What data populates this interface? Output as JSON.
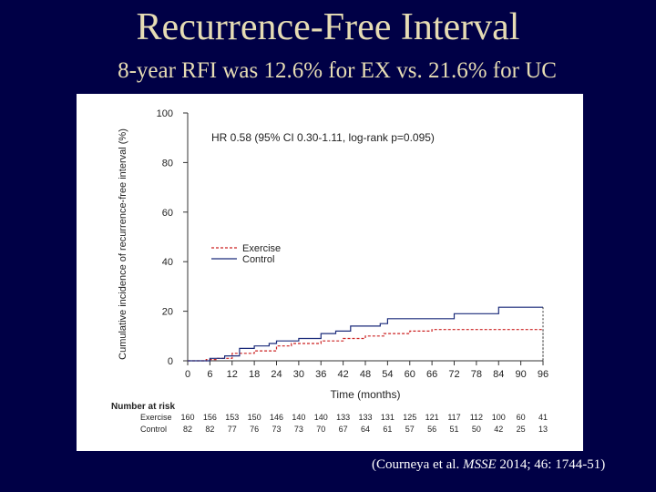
{
  "title": "Recurrence-Free Interval",
  "subtitle": "8-year RFI was 12.6% for EX vs. 21.6% for UC",
  "citation": {
    "prefix": "(Courneya et al. ",
    "journal": "MSSE",
    "suffix": " 2014; 46: 1744-51)"
  },
  "colors": {
    "background": "#000046",
    "title": "#e6dcb4",
    "exercise": "#cc2222",
    "control": "#1a2a7a"
  },
  "chart_data": {
    "type": "line",
    "ylabel": "Cumulative incidence of recurrence-free interval (%)",
    "xlabel": "Time (months)",
    "annotation": "HR 0.58 (95% CI 0.30-1.11, log-rank p=0.095)",
    "xlim": [
      0,
      96
    ],
    "ylim": [
      0,
      100
    ],
    "x_ticks": [
      0,
      6,
      12,
      18,
      24,
      30,
      36,
      42,
      48,
      54,
      60,
      66,
      72,
      78,
      84,
      90,
      96
    ],
    "y_ticks": [
      0,
      20,
      40,
      60,
      80,
      100
    ],
    "legend_position": "middle-left",
    "series": [
      {
        "name": "Exercise",
        "style": "dashed",
        "color": "#cc2222",
        "points": [
          [
            0,
            0
          ],
          [
            5,
            0
          ],
          [
            5,
            0.5
          ],
          [
            8,
            0.5
          ],
          [
            8,
            1
          ],
          [
            12,
            1
          ],
          [
            12,
            3
          ],
          [
            18,
            3
          ],
          [
            18,
            4
          ],
          [
            24,
            4
          ],
          [
            24,
            6
          ],
          [
            28,
            6
          ],
          [
            28,
            7
          ],
          [
            36,
            7
          ],
          [
            36,
            8
          ],
          [
            42,
            8
          ],
          [
            42,
            9
          ],
          [
            48,
            9
          ],
          [
            48,
            10
          ],
          [
            53,
            10
          ],
          [
            53,
            11
          ],
          [
            60,
            11
          ],
          [
            60,
            12
          ],
          [
            66,
            12
          ],
          [
            66,
            12.6
          ],
          [
            96,
            12.6
          ]
        ]
      },
      {
        "name": "Control",
        "style": "solid",
        "color": "#1a2a7a",
        "points": [
          [
            0,
            0
          ],
          [
            6,
            0
          ],
          [
            6,
            1
          ],
          [
            10,
            1
          ],
          [
            10,
            2
          ],
          [
            14,
            2
          ],
          [
            14,
            5
          ],
          [
            18,
            5
          ],
          [
            18,
            6
          ],
          [
            22,
            6
          ],
          [
            22,
            7
          ],
          [
            24,
            7
          ],
          [
            24,
            8
          ],
          [
            30,
            8
          ],
          [
            30,
            9
          ],
          [
            36,
            9
          ],
          [
            36,
            11
          ],
          [
            40,
            11
          ],
          [
            40,
            12
          ],
          [
            44,
            12
          ],
          [
            44,
            14
          ],
          [
            52,
            14
          ],
          [
            52,
            15
          ],
          [
            54,
            15
          ],
          [
            54,
            17
          ],
          [
            72,
            17
          ],
          [
            72,
            19
          ],
          [
            84,
            19
          ],
          [
            84,
            21.6
          ],
          [
            96,
            21.6
          ]
        ]
      }
    ],
    "number_at_risk": {
      "label": "Number at risk",
      "rows": [
        {
          "name": "Exercise",
          "values": [
            "160",
            "156",
            "153",
            "150",
            "146",
            "140",
            "140",
            "133",
            "133",
            "131",
            "125",
            "121",
            "117",
            "112",
            "100",
            "60",
            "41"
          ]
        },
        {
          "name": "Control",
          "values": [
            "82",
            "82",
            "77",
            "76",
            "73",
            "73",
            "70",
            "67",
            "64",
            "61",
            "57",
            "56",
            "51",
            "50",
            "42",
            "25",
            "13"
          ]
        }
      ]
    }
  }
}
